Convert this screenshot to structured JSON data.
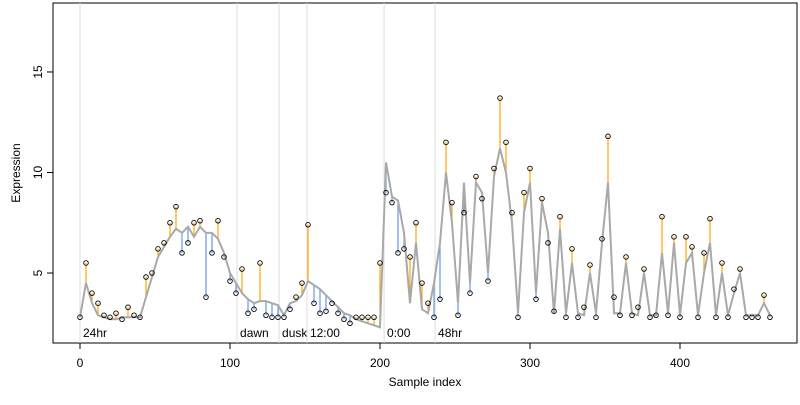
{
  "chart_data": {
    "type": "line",
    "xlabel": "Sample index",
    "ylabel": "Expression",
    "xlim": [
      -18,
      478
    ],
    "ylim": [
      1.52,
      18.43
    ],
    "xticks": [
      0,
      100,
      200,
      300,
      400
    ],
    "yticks": [
      5,
      10,
      15
    ],
    "line_color": "#a9a9a9",
    "above_color": "#ffa500",
    "below_color": "#6495ed",
    "annotation_color": "#dddddd",
    "annotation_text_color": "#aaaaaa",
    "annotations": [
      {
        "x": 0,
        "label": "24hr"
      },
      {
        "x": 104.7,
        "label": "dawn"
      },
      {
        "x": 132.7,
        "label": "dusk"
      },
      {
        "x": 151.3,
        "label": "12:00"
      },
      {
        "x": 202.7,
        "label": "0:00"
      },
      {
        "x": 236.7,
        "label": "48hr"
      }
    ],
    "x": [
      0,
      4,
      8,
      12,
      16,
      20,
      24,
      28,
      32,
      36,
      40,
      44,
      48,
      52,
      56,
      60,
      64,
      68,
      72,
      76,
      80,
      84,
      88,
      92,
      96,
      100,
      104,
      108,
      112,
      116,
      120,
      124,
      128,
      132,
      136,
      140,
      144,
      148,
      152,
      156,
      160,
      164,
      168,
      172,
      176,
      180,
      184,
      188,
      192,
      196,
      200,
      204,
      208,
      212,
      216,
      220,
      224,
      228,
      232,
      236,
      240,
      244,
      248,
      252,
      256,
      260,
      264,
      268,
      272,
      276,
      280,
      284,
      288,
      292,
      296,
      300,
      304,
      308,
      312,
      316,
      320,
      324,
      328,
      332,
      336,
      340,
      344,
      348,
      352,
      356,
      360,
      364,
      368,
      372,
      376,
      380,
      384,
      388,
      392,
      396,
      400,
      404,
      408,
      412,
      416,
      420,
      424,
      428,
      432,
      436,
      440,
      444,
      448,
      452,
      456,
      460
    ],
    "fitted": [
      2.8,
      4.5,
      3.5,
      2.9,
      2.8,
      2.7,
      2.7,
      2.8,
      2.8,
      2.8,
      2.8,
      3.8,
      4.8,
      5.8,
      6.3,
      6.8,
      7.2,
      7.0,
      7.3,
      6.8,
      7.3,
      7.0,
      7.0,
      6.7,
      6.0,
      5.0,
      4.5,
      4.0,
      3.7,
      3.5,
      3.6,
      3.6,
      3.5,
      3.4,
      2.9,
      3.5,
      3.6,
      3.9,
      4.6,
      4.4,
      4.2,
      3.9,
      3.6,
      3.3,
      3.0,
      2.9,
      2.7,
      2.6,
      2.5,
      2.4,
      2.3,
      10.5,
      8.8,
      8.6,
      7.0,
      3.5,
      6.5,
      3.2,
      3.0,
      4.5,
      6.5,
      10.0,
      7.5,
      3.5,
      9.5,
      4.5,
      9.5,
      9.0,
      5.0,
      9.8,
      11.2,
      10.0,
      7.5,
      3.0,
      8.0,
      9.5,
      4.0,
      8.5,
      7.0,
      3.0,
      7.2,
      3.0,
      5.5,
      3.0,
      2.9,
      5.0,
      3.0,
      6.5,
      9.5,
      3.0,
      3.0,
      5.5,
      3.0,
      2.9,
      5.0,
      2.9,
      2.9,
      6.0,
      3.0,
      6.5,
      2.9,
      5.5,
      6.0,
      2.9,
      5.0,
      6.5,
      2.9,
      5.0,
      2.9,
      4.0,
      5.0,
      2.9,
      2.9,
      2.9,
      3.5,
      2.9
    ],
    "values": [
      2.8,
      5.5,
      4.0,
      3.5,
      2.9,
      2.8,
      3.0,
      2.7,
      3.3,
      2.9,
      2.8,
      4.8,
      5.0,
      6.2,
      6.5,
      7.5,
      8.3,
      6.0,
      6.5,
      7.5,
      7.6,
      3.8,
      6.0,
      7.6,
      5.8,
      4.6,
      4.0,
      5.2,
      3.0,
      3.2,
      5.5,
      2.9,
      2.8,
      2.8,
      2.8,
      3.2,
      3.8,
      4.5,
      7.4,
      3.5,
      3.0,
      3.1,
      3.5,
      3.0,
      2.7,
      2.5,
      2.8,
      2.8,
      2.8,
      2.8,
      5.5,
      9.0,
      8.5,
      6.0,
      6.2,
      5.8,
      7.5,
      4.5,
      3.5,
      2.8,
      3.7,
      11.5,
      8.5,
      2.9,
      8.0,
      4.0,
      9.8,
      8.7,
      4.6,
      10.2,
      13.7,
      11.5,
      8.0,
      2.8,
      9.0,
      10.2,
      3.7,
      8.7,
      6.5,
      3.1,
      7.8,
      2.8,
      6.2,
      2.8,
      3.3,
      5.4,
      2.8,
      6.7,
      11.8,
      3.8,
      2.9,
      5.8,
      2.9,
      3.3,
      5.2,
      2.8,
      2.9,
      7.8,
      2.9,
      6.8,
      2.8,
      6.8,
      6.3,
      2.8,
      6.0,
      7.7,
      2.8,
      5.5,
      2.8,
      4.2,
      5.2,
      2.8,
      2.8,
      2.8,
      3.9,
      2.8
    ]
  }
}
